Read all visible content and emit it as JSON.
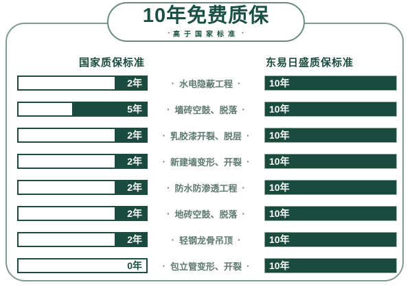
{
  "header": {
    "title": "10年免费质保",
    "subtitle": "高于国家标准"
  },
  "decor": {
    "bullet": "·"
  },
  "columns": {
    "left": "国家质保标准",
    "right": "东易日盛质保标准"
  },
  "colors": {
    "dark_green": "#1B4B3E",
    "title_green": "#1A5044",
    "label_green": "#5F7A6E",
    "card_border": "#7E998E",
    "pill_border": "#69897C",
    "bar_edge": "#8FA69B"
  },
  "rows": [
    {
      "national_label": "2年",
      "national_fill_pct": 25,
      "item": "水电隐蔽工程",
      "company_label": "10年"
    },
    {
      "national_label": "5年",
      "national_fill_pct": 58,
      "item": "墙砖空鼓、脱落",
      "company_label": "10年"
    },
    {
      "national_label": "2年",
      "national_fill_pct": 25,
      "item": "乳胶漆开裂、脱层",
      "company_label": "10年"
    },
    {
      "national_label": "2年",
      "national_fill_pct": 25,
      "item": "新建墙变形、开裂",
      "company_label": "10年"
    },
    {
      "national_label": "2年",
      "national_fill_pct": 25,
      "item": "防水防渗透工程",
      "company_label": "10年"
    },
    {
      "national_label": "2年",
      "national_fill_pct": 25,
      "item": "地砖空鼓、脱落",
      "company_label": "10年"
    },
    {
      "national_label": "2年",
      "national_fill_pct": 25,
      "item": "轻钢龙骨吊顶",
      "company_label": "10年"
    },
    {
      "national_label": "0年",
      "national_fill_pct": 0,
      "item": "包立管变形、开裂",
      "company_label": "10年"
    }
  ],
  "chart_data": {
    "type": "bar",
    "orientation": "horizontal",
    "title": "10年免费质保",
    "subtitle": "高于国家标准",
    "unit": "年",
    "categories": [
      "水电隐蔽工程",
      "墙砖空鼓、脱落",
      "乳胶漆开裂、脱层",
      "新建墙变形、开裂",
      "防水防渗透工程",
      "地砖空鼓、脱落",
      "轻钢龙骨吊顶",
      "包立管变形、开裂"
    ],
    "series": [
      {
        "name": "国家质保标准",
        "values": [
          2,
          5,
          2,
          2,
          2,
          2,
          2,
          0
        ]
      },
      {
        "name": "东易日盛质保标准",
        "values": [
          10,
          10,
          10,
          10,
          10,
          10,
          10,
          10
        ]
      }
    ],
    "xlim": [
      0,
      10
    ],
    "grid": false,
    "legend_position": "column-headers-top"
  }
}
